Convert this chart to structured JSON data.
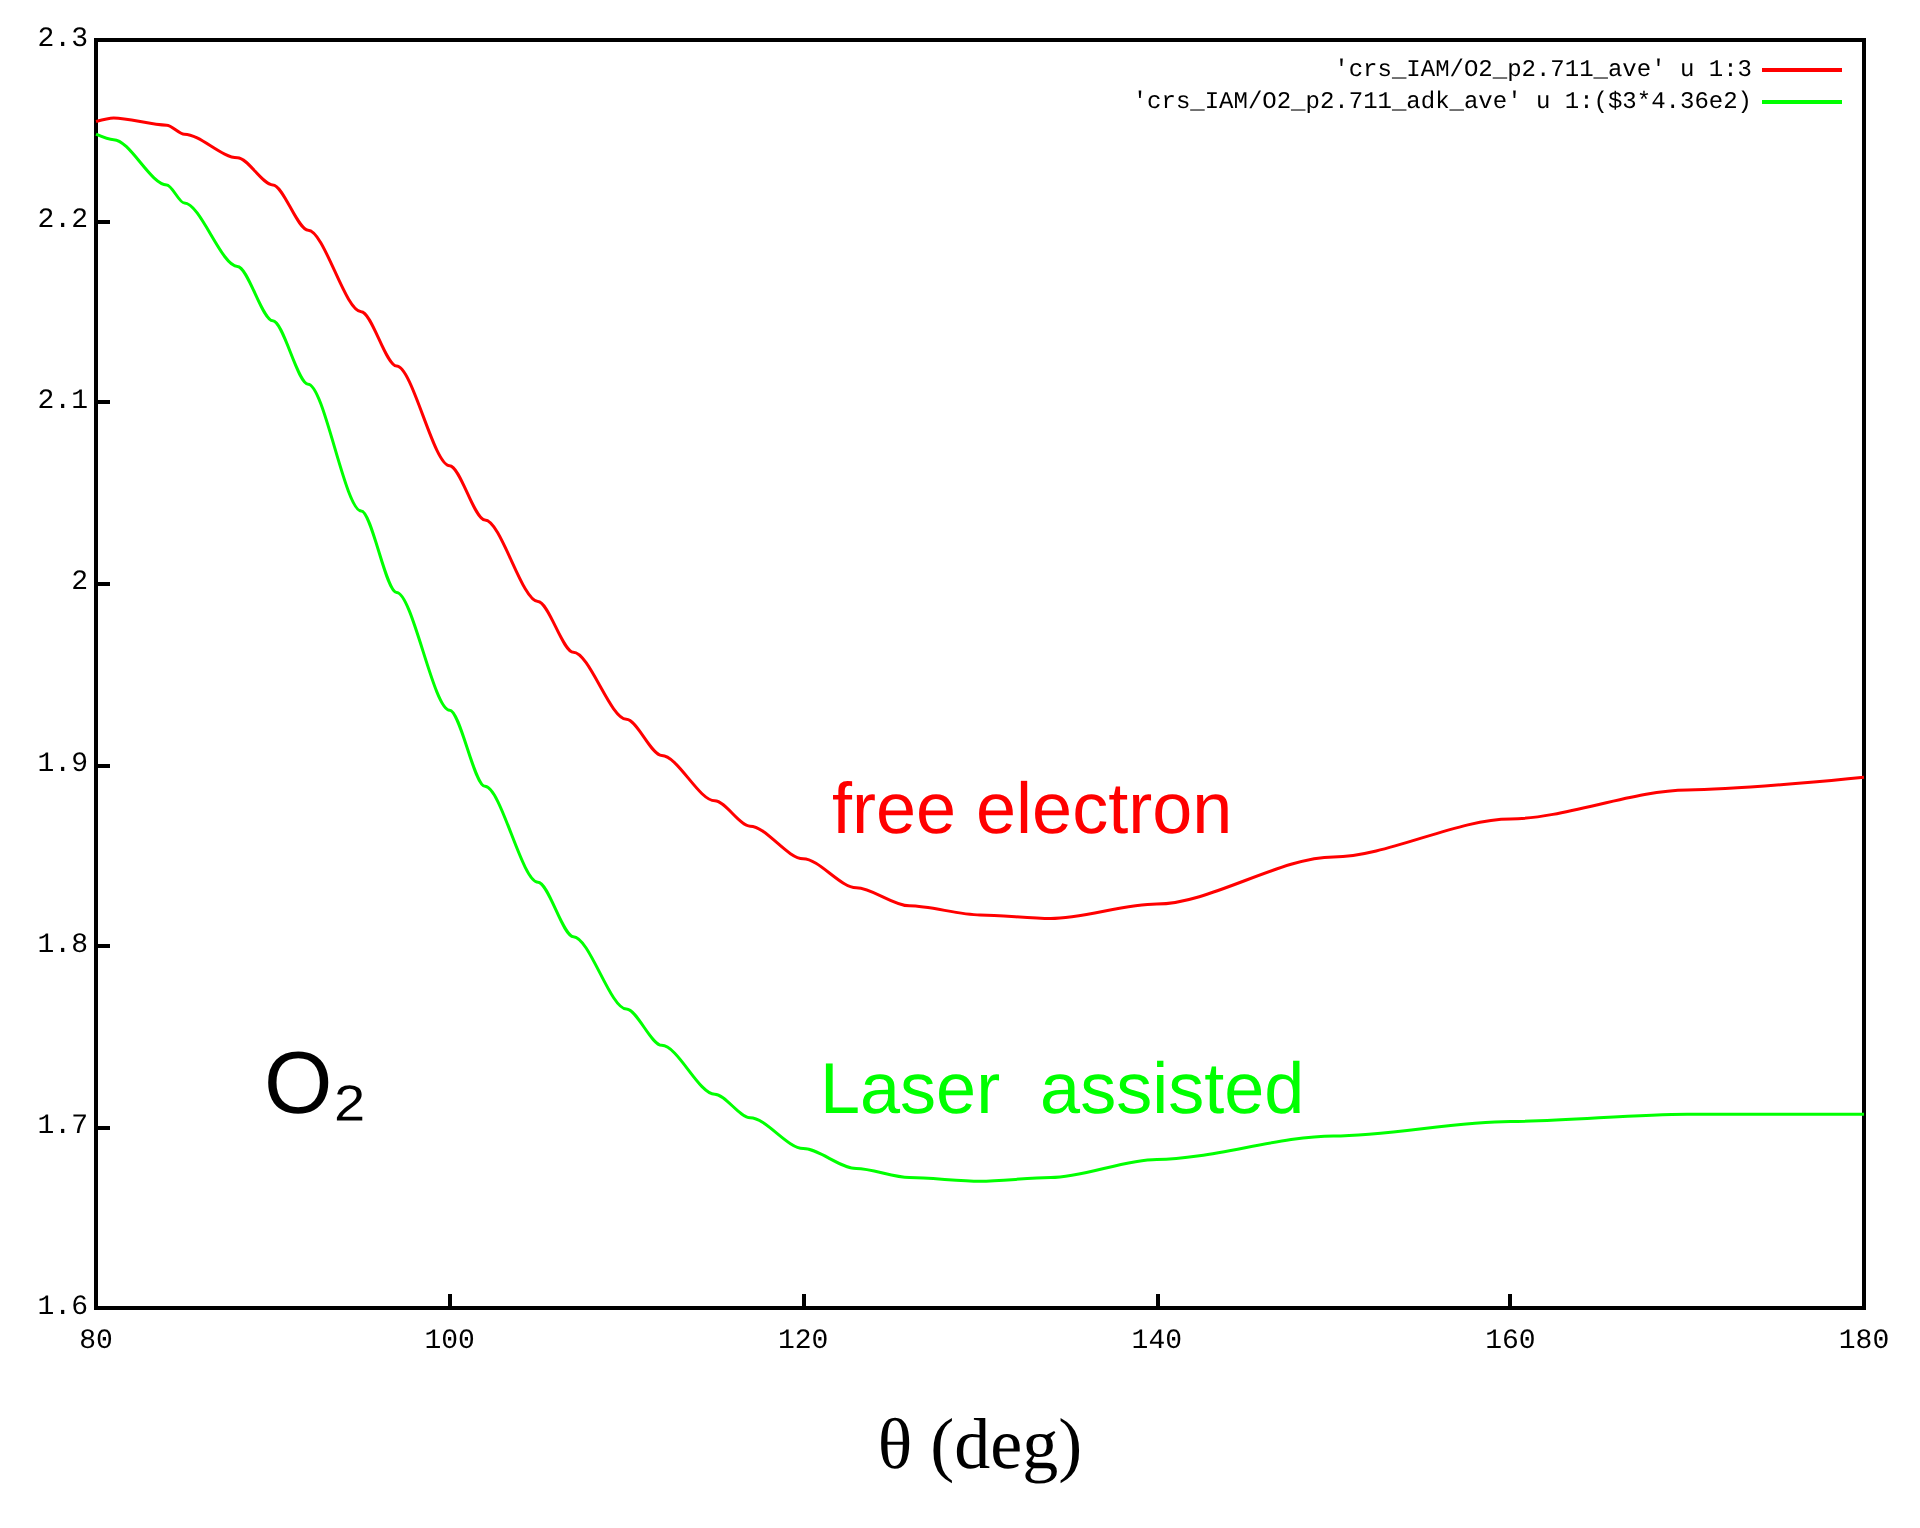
{
  "chart_data": {
    "type": "line",
    "xlabel": "θ (deg)",
    "x": [
      80,
      81,
      84,
      85,
      88,
      90,
      92,
      95,
      97,
      100,
      102,
      105,
      107,
      110,
      112,
      115,
      117,
      120,
      123,
      126,
      130,
      134,
      140,
      150,
      160,
      170,
      180
    ],
    "series": [
      {
        "name": "'crs_IAM/O2_p2.711_ave' u 1:3",
        "color": "#ff0000",
        "values": [
          2.255,
          2.257,
          2.253,
          2.248,
          2.235,
          2.22,
          2.195,
          2.15,
          2.12,
          2.065,
          2.035,
          1.99,
          1.962,
          1.925,
          1.905,
          1.88,
          1.866,
          1.848,
          1.832,
          1.822,
          1.817,
          1.815,
          1.823,
          1.849,
          1.87,
          1.886,
          1.893
        ]
      },
      {
        "name": "'crs_IAM/O2_p2.711_adk_ave' u 1:($3*4.36e2)",
        "color": "#00ff00",
        "values": [
          2.248,
          2.245,
          2.22,
          2.21,
          2.175,
          2.145,
          2.11,
          2.04,
          1.995,
          1.93,
          1.888,
          1.835,
          1.805,
          1.765,
          1.745,
          1.718,
          1.705,
          1.688,
          1.677,
          1.672,
          1.67,
          1.672,
          1.682,
          1.695,
          1.703,
          1.707,
          1.707
        ]
      }
    ],
    "xlim": [
      80,
      180
    ],
    "xticks": [
      80,
      100,
      120,
      140,
      160,
      180
    ],
    "ylim": [
      1.6,
      2.3
    ],
    "yticks": [
      1.6,
      1.7,
      1.8,
      1.9,
      2,
      2.1,
      2.2,
      2.3
    ],
    "legend": "top right",
    "grid": false,
    "annotations": [
      "free electron",
      "Laser  assisted",
      "O₂"
    ]
  }
}
